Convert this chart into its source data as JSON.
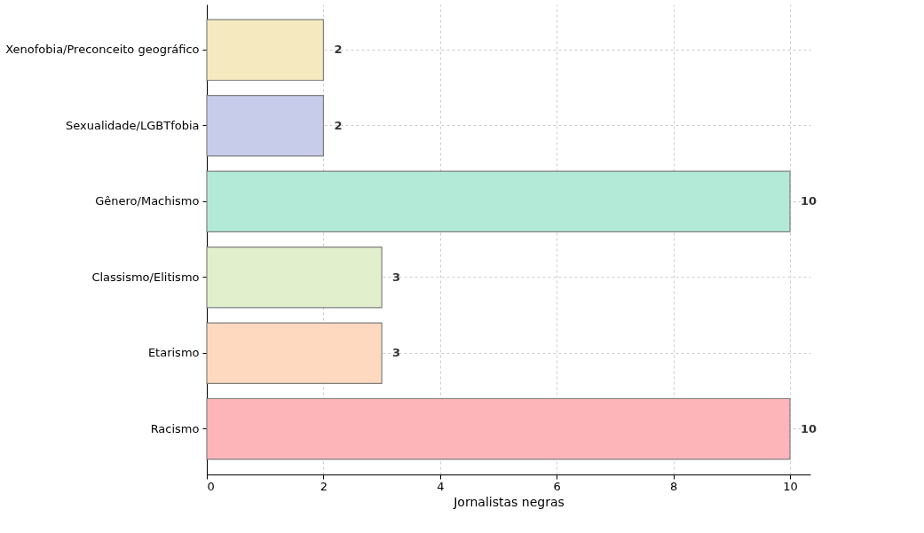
{
  "chart_data": {
    "type": "bar",
    "orientation": "horizontal",
    "xlabel": "Jornalistas negras",
    "categories": [
      "Xenofobia/Preconceito geográfico",
      "Sexualidade/LGBTfobia",
      "Gênero/Machismo",
      "Classismo/Elitismo",
      "Etarismo",
      "Racismo"
    ],
    "values": [
      2,
      2,
      10,
      3,
      3,
      10
    ],
    "colors": [
      "#f5e9c0",
      "#c6cce9",
      "#b3ead7",
      "#e2efcc",
      "#fed9bf",
      "#feb5b9"
    ],
    "xlim": [
      0,
      10.35
    ],
    "xticks": [
      0,
      2,
      4,
      6,
      8,
      10
    ],
    "grid": true,
    "data_labels": true
  }
}
